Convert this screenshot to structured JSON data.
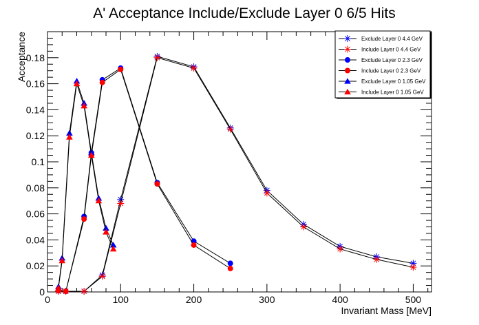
{
  "chart_data": {
    "type": "line",
    "title": "A' Acceptance Include/Exclude Layer 0 6/5 Hits",
    "xlabel": "Invariant Mass [MeV]",
    "ylabel": "Acceptance",
    "xlim": [
      0,
      525
    ],
    "ylim": [
      0,
      0.2
    ],
    "x_ticks": [
      0,
      100,
      200,
      300,
      400,
      500
    ],
    "y_ticks": [
      0,
      0.02,
      0.04,
      0.06,
      0.08,
      0.1,
      0.12,
      0.14,
      0.16,
      0.18
    ],
    "x_tick_labels": [
      "0",
      "100",
      "200",
      "300",
      "400",
      "500"
    ],
    "y_tick_labels": [
      "0",
      "0.02",
      "0.04",
      "0.06",
      "0.08",
      "0.1",
      "0.12",
      "0.14",
      "0.16",
      "0.18"
    ],
    "grid": false,
    "legend_position": "top-right",
    "series": [
      {
        "name": "Exclude Layer 0 4.4 GeV",
        "color": "#0000ff",
        "marker": "asterisk",
        "x": [
          15,
          25,
          50,
          75,
          100,
          150,
          200,
          250,
          300,
          350,
          400,
          450,
          500
        ],
        "y": [
          0.0005,
          0.0005,
          0.0005,
          0.013,
          0.071,
          0.181,
          0.173,
          0.126,
          0.078,
          0.052,
          0.035,
          0.027,
          0.022
        ]
      },
      {
        "name": "Include Layer 0 4.4 GeV",
        "color": "#ff0000",
        "marker": "asterisk",
        "x": [
          15,
          25,
          50,
          75,
          100,
          150,
          200,
          250,
          300,
          350,
          400,
          450,
          500
        ],
        "y": [
          0.0005,
          0.0005,
          0.0005,
          0.012,
          0.068,
          0.18,
          0.172,
          0.125,
          0.076,
          0.05,
          0.033,
          0.025,
          0.019
        ]
      },
      {
        "name": "Exclude Layer 0 2.3 GeV",
        "color": "#0000ff",
        "marker": "circle",
        "x": [
          15,
          25,
          50,
          60,
          75,
          100,
          150,
          200,
          250
        ],
        "y": [
          0.001,
          0.0005,
          0.058,
          0.107,
          0.163,
          0.172,
          0.084,
          0.039,
          0.022
        ]
      },
      {
        "name": "Include Layer 0 2.3 GeV",
        "color": "#ff0000",
        "marker": "circle",
        "x": [
          15,
          25,
          50,
          60,
          75,
          100,
          150,
          200,
          250
        ],
        "y": [
          0.001,
          0.0005,
          0.056,
          0.105,
          0.161,
          0.171,
          0.083,
          0.036,
          0.018
        ]
      },
      {
        "name": "Exclude Layer 0 1.05 GeV",
        "color": "#0000ff",
        "marker": "triangle",
        "x": [
          15,
          20,
          30,
          40,
          50,
          60,
          70,
          80,
          90
        ],
        "y": [
          0.004,
          0.026,
          0.122,
          0.162,
          0.145,
          0.107,
          0.072,
          0.049,
          0.036
        ]
      },
      {
        "name": "Include Layer 0 1.05 GeV",
        "color": "#ff0000",
        "marker": "triangle",
        "x": [
          15,
          20,
          30,
          40,
          50,
          60,
          70,
          80,
          90
        ],
        "y": [
          0.003,
          0.024,
          0.119,
          0.16,
          0.143,
          0.105,
          0.07,
          0.046,
          0.033
        ]
      }
    ]
  }
}
